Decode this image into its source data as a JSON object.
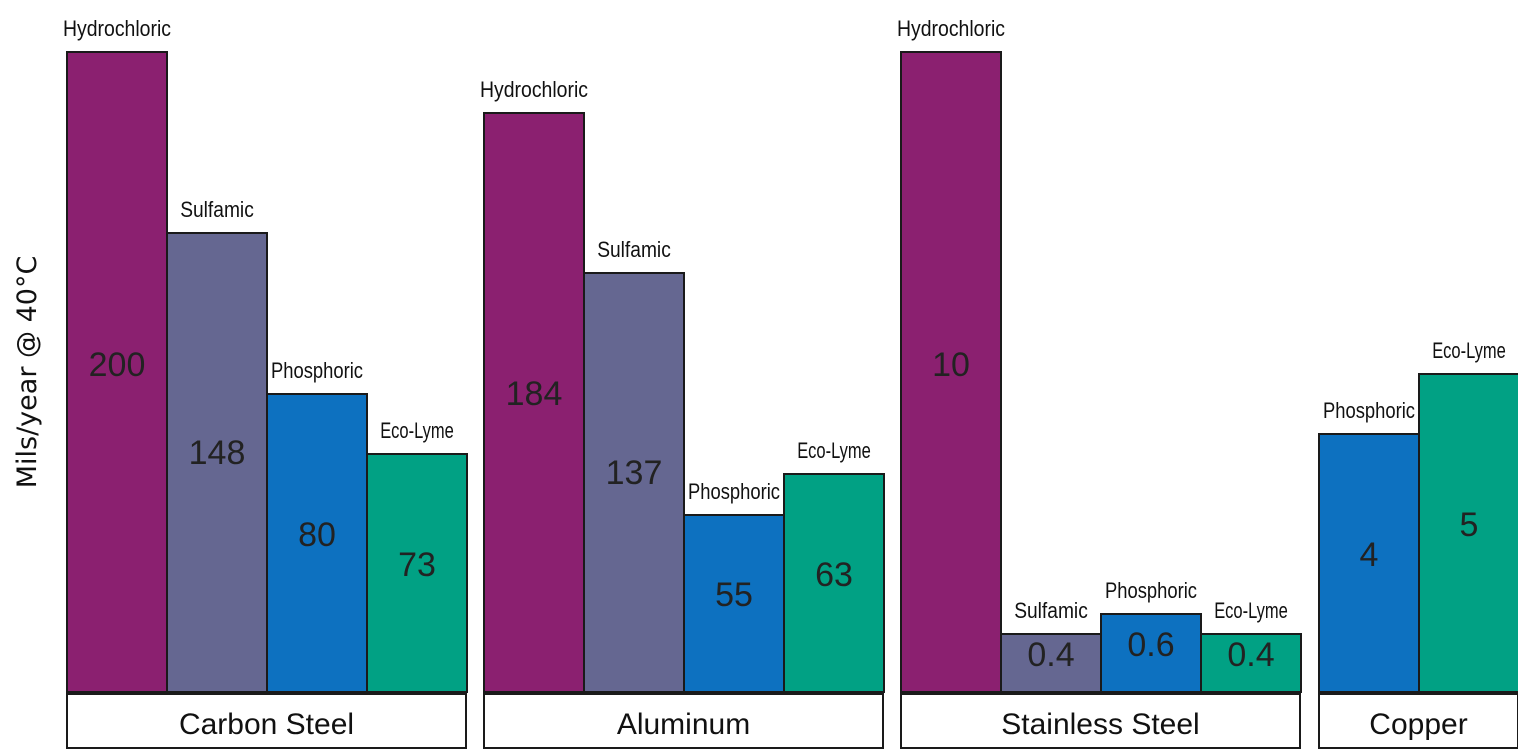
{
  "chart_data": {
    "type": "bar",
    "ylabel": "Mils/year @ 40°C",
    "colors": {
      "Hydrochloric": "#8b2070",
      "Sulfamic": "#656791",
      "Phosphoric": "#0d71c0",
      "Eco-Lyme": "#01a184"
    },
    "groups": [
      {
        "name": "Carbon Steel",
        "bars": [
          {
            "series": "Hydrochloric",
            "value": 200,
            "label": "200"
          },
          {
            "series": "Sulfamic",
            "value": 148,
            "label": "148"
          },
          {
            "series": "Phosphoric",
            "value": 80,
            "label": "80"
          },
          {
            "series": "Eco-Lyme",
            "value": 73,
            "label": "73"
          }
        ]
      },
      {
        "name": "Aluminum",
        "bars": [
          {
            "series": "Hydrochloric",
            "value": 184,
            "label": "184"
          },
          {
            "series": "Sulfamic",
            "value": 137,
            "label": "137"
          },
          {
            "series": "Phosphoric",
            "value": 55,
            "label": "55"
          },
          {
            "series": "Eco-Lyme",
            "value": 63,
            "label": "63"
          }
        ]
      },
      {
        "name": "Stainless Steel",
        "bars": [
          {
            "series": "Hydrochloric",
            "value": 10,
            "label": "10"
          },
          {
            "series": "Sulfamic",
            "value": 0.4,
            "label": "0.4"
          },
          {
            "series": "Phosphoric",
            "value": 0.6,
            "label": "0.6"
          },
          {
            "series": "Eco-Lyme",
            "value": 0.4,
            "label": "0.4"
          }
        ]
      },
      {
        "name": "Copper",
        "bars": [
          {
            "series": "Phosphoric",
            "value": 4,
            "label": "4"
          },
          {
            "series": "Eco-Lyme",
            "value": 5,
            "label": "5"
          }
        ]
      }
    ]
  }
}
